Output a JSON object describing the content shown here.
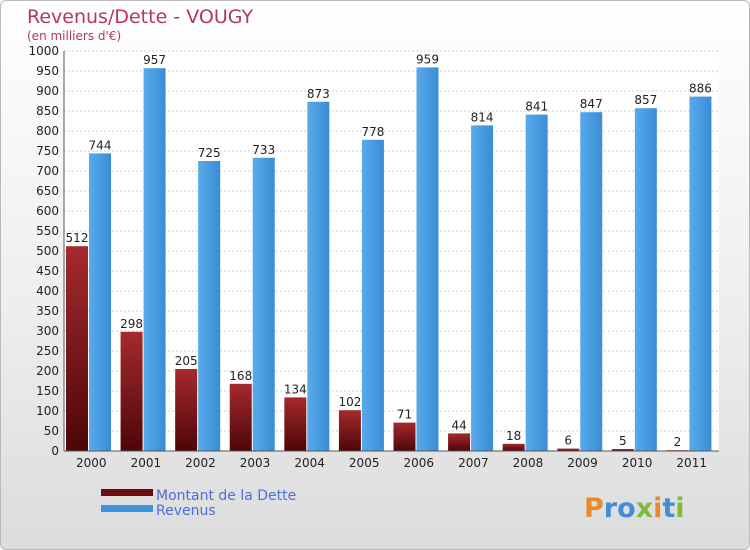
{
  "chart_data": {
    "type": "bar",
    "title": "Revenus/Dette - VOUGY",
    "subtitle": "(en milliers d'€)",
    "categories": [
      "2000",
      "2001",
      "2002",
      "2003",
      "2004",
      "2005",
      "2006",
      "2007",
      "2008",
      "2009",
      "2010",
      "2011"
    ],
    "series": [
      {
        "name": "Montant de la Dette",
        "color": "#7a1416",
        "values": [
          512,
          298,
          205,
          168,
          134,
          102,
          71,
          44,
          18,
          6,
          5,
          2
        ]
      },
      {
        "name": "Revenus",
        "color": "#3e95de",
        "values": [
          744,
          957,
          725,
          733,
          873,
          778,
          959,
          814,
          841,
          847,
          857,
          886
        ]
      }
    ],
    "ylim": [
      0,
      1000
    ],
    "ytick_step": 50,
    "grid": true,
    "legend_position": "bottom-left"
  },
  "branding": {
    "logo_text": "Proxiti",
    "logo_icon": "proxiti-logo"
  }
}
